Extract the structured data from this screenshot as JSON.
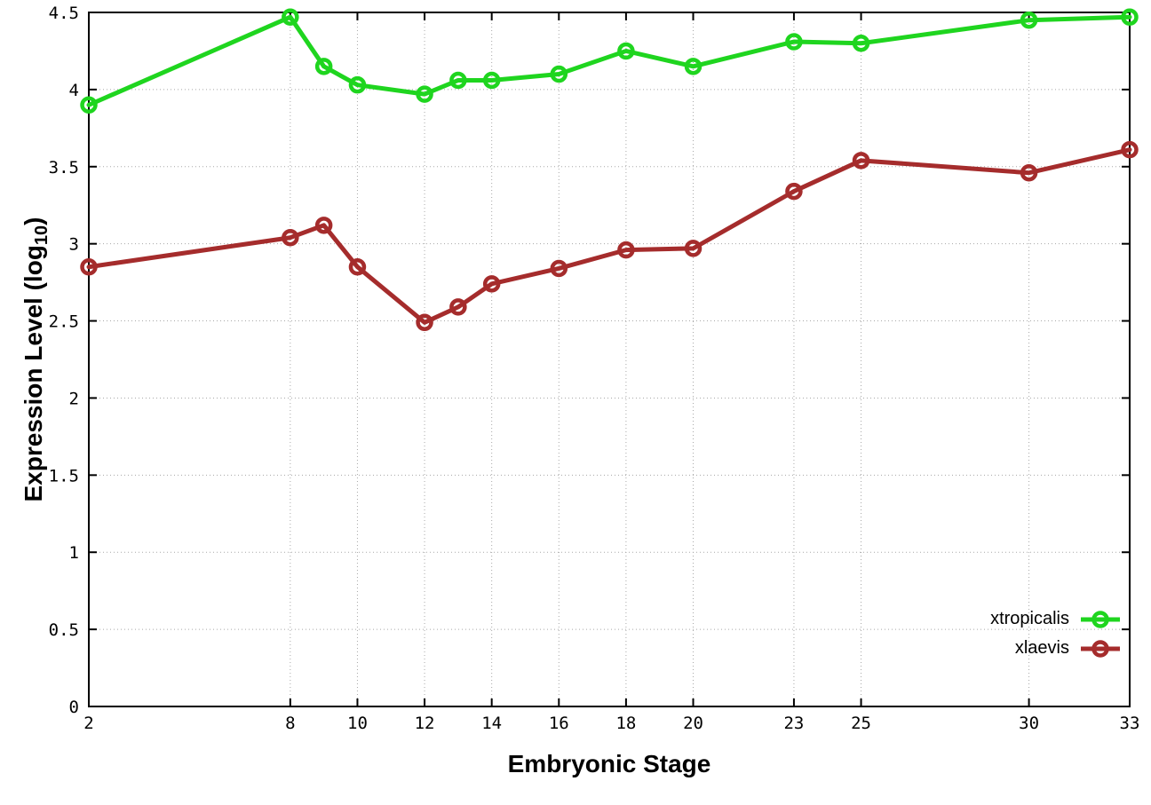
{
  "chart_data": {
    "type": "line",
    "title": "",
    "xlabel": "Embryonic Stage",
    "ylabel": "Expression Level (log10)",
    "ylabel_main": "Expression Level (log",
    "ylabel_sub": "10",
    "ylabel_close": ")",
    "xlim": [
      2,
      33
    ],
    "ylim": [
      0,
      4.5
    ],
    "grid": true,
    "grid_style": "dotted",
    "legend_position": "inside-bottom-right",
    "x_tick_labels": [
      "2",
      "8",
      "10",
      "12",
      "14",
      "16",
      "18",
      "20",
      "23",
      "25",
      "30",
      "33"
    ],
    "y_tick_labels": [
      "0",
      "0.5",
      "1",
      "1.5",
      "2",
      "2.5",
      "3",
      "3.5",
      "4",
      "4.5"
    ],
    "x": [
      2,
      8,
      9,
      10,
      12,
      13,
      14,
      16,
      18,
      20,
      23,
      25,
      30,
      33
    ],
    "series": [
      {
        "name": "xtropicalis",
        "color": "#1fd51f",
        "marker": "open-circle",
        "values": [
          3.9,
          4.47,
          4.15,
          4.03,
          3.97,
          4.06,
          4.06,
          4.1,
          4.25,
          4.15,
          4.31,
          4.3,
          4.45,
          4.47
        ]
      },
      {
        "name": "xlaevis",
        "color": "#a52c2c",
        "marker": "open-circle",
        "values": [
          2.85,
          3.04,
          3.12,
          2.85,
          2.49,
          2.59,
          2.74,
          2.84,
          2.96,
          2.97,
          3.34,
          3.54,
          3.46,
          3.61
        ]
      }
    ],
    "colors": {
      "background": "#ffffff",
      "border": "#000000",
      "grid": "#a8a8a8",
      "text": "#000000"
    }
  }
}
